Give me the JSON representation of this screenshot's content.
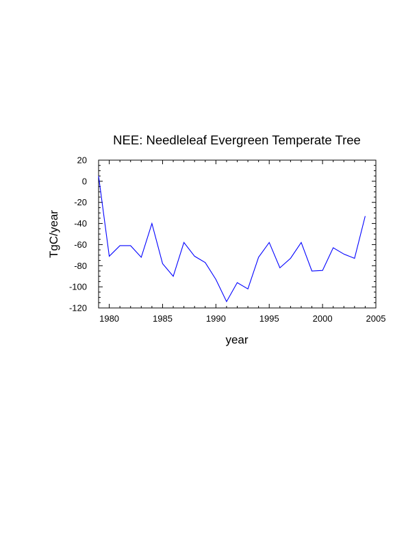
{
  "chart_data": {
    "type": "line",
    "title": "NEE: Needleleaf Evergreen Temperate Tree",
    "xlabel": "year",
    "ylabel": "TgC/year",
    "xlim": [
      1979,
      2005
    ],
    "ylim": [
      -120,
      20
    ],
    "xticks": [
      1980,
      1985,
      1990,
      1995,
      2000,
      2005
    ],
    "yticks": [
      20,
      0,
      -20,
      -40,
      -60,
      -80,
      -100,
      -120
    ],
    "grid": false,
    "series": [
      {
        "name": "NEE",
        "color": "#0000ff",
        "x": [
          1979,
          1980,
          1981,
          1982,
          1983,
          1984,
          1985,
          1986,
          1987,
          1988,
          1989,
          1990,
          1991,
          1992,
          1993,
          1994,
          1995,
          1996,
          1997,
          1998,
          1999,
          2000,
          2001,
          2002,
          2003,
          2004
        ],
        "y": [
          5,
          -71,
          -61,
          -61,
          -72,
          -40,
          -78,
          -90,
          -58,
          -71,
          -77,
          -93,
          -114,
          -96,
          -102,
          -72,
          -58,
          -82,
          -73,
          -58,
          -85,
          -84.5,
          -63,
          -69,
          -73,
          -33
        ]
      }
    ]
  }
}
